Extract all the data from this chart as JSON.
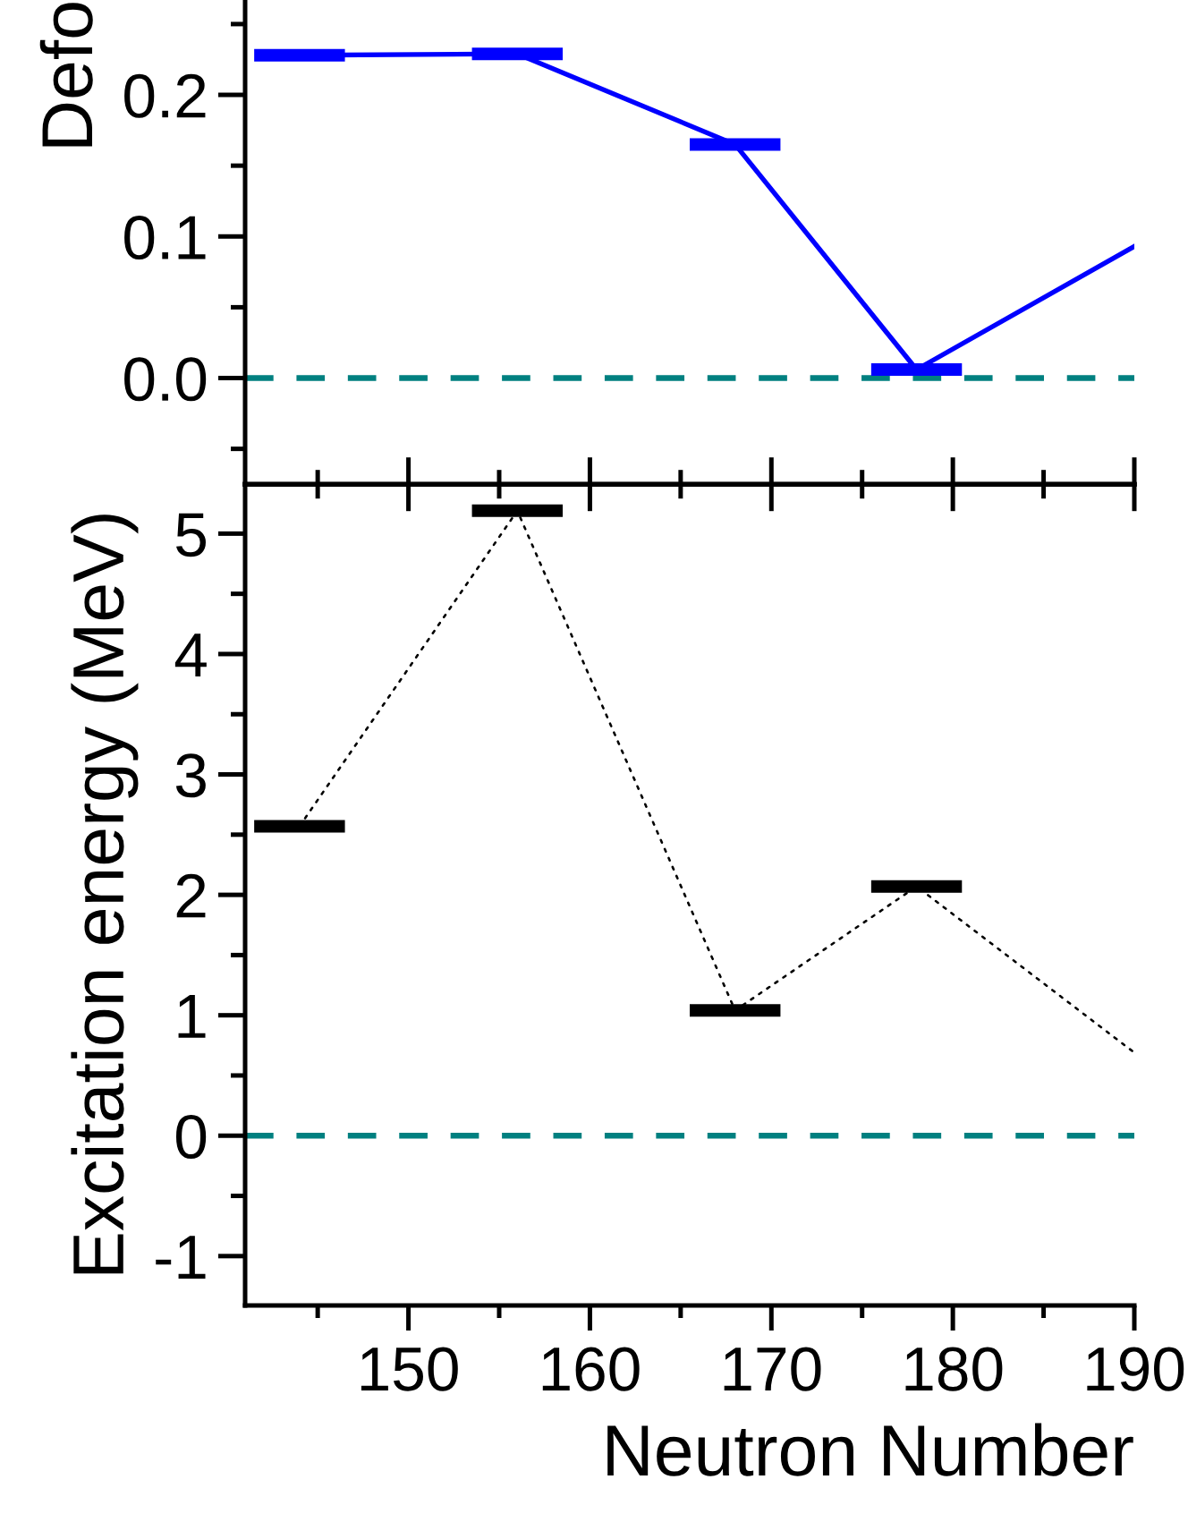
{
  "chart_data": [
    {
      "type": "line",
      "ylabel": "Defo",
      "xlim": [
        141,
        190
      ],
      "xticks": [
        {
          "value": 145,
          "label": null
        },
        150,
        {
          "value": 155,
          "label": null
        },
        160,
        {
          "value": 165,
          "label": null
        },
        170,
        {
          "value": 175,
          "label": null
        },
        180,
        {
          "value": 185,
          "label": null
        },
        190
      ],
      "ylim": [
        -0.075,
        0.267
      ],
      "yticks": [
        {
          "value": -0.05,
          "label": null
        },
        {
          "value": 0,
          "label": "0.0"
        },
        {
          "value": 0.05,
          "label": null
        },
        0.1,
        {
          "value": 0.15,
          "label": null
        },
        0.2,
        {
          "value": 0.25,
          "label": null
        }
      ],
      "tick_labels": "y",
      "series": [
        {
          "color": "#0000ff",
          "line_style": "solid",
          "x": [
            144,
            156,
            168,
            178,
            190
          ],
          "values": [
            0.228,
            0.229,
            0.165,
            0.006,
            0.093
          ],
          "xerrors": [
            2.5,
            2.5,
            2.5,
            2.5,
            null
          ]
        }
      ],
      "ref_lines": [
        {
          "axis": "y",
          "value": 0,
          "color": "#008080",
          "line_style": "dashed"
        }
      ]
    },
    {
      "type": "line",
      "xlabel": "Neutron Number",
      "ylabel": "Excitation energy (MeV)",
      "xlim": [
        141,
        190
      ],
      "xticks": [
        {
          "value": 145,
          "label": null
        },
        150,
        {
          "value": 155,
          "label": null
        },
        160,
        {
          "value": 165,
          "label": null
        },
        170,
        {
          "value": 175,
          "label": null
        },
        180,
        {
          "value": 185,
          "label": null
        },
        190
      ],
      "ylim": [
        -1.41,
        5.41
      ],
      "yticks": [
        -1,
        {
          "value": -0.5,
          "label": null
        },
        0,
        {
          "value": 0.5,
          "label": null
        },
        1,
        {
          "value": 1.5,
          "label": null
        },
        2,
        {
          "value": 2.5,
          "label": null
        },
        3,
        {
          "value": 3.5,
          "label": null
        },
        4,
        {
          "value": 4.5,
          "label": null
        },
        5
      ],
      "series": [
        {
          "color": "#000000",
          "line_style": "dotted",
          "x": [
            144,
            156,
            168,
            178,
            190
          ],
          "values": [
            2.57,
            5.19,
            1.04,
            2.07,
            0.69
          ],
          "xerrors": [
            2.5,
            2.5,
            2.5,
            2.5,
            null
          ]
        }
      ],
      "ref_lines": [
        {
          "axis": "y",
          "value": 0,
          "color": "#008080",
          "line_style": "dashed"
        }
      ]
    }
  ]
}
